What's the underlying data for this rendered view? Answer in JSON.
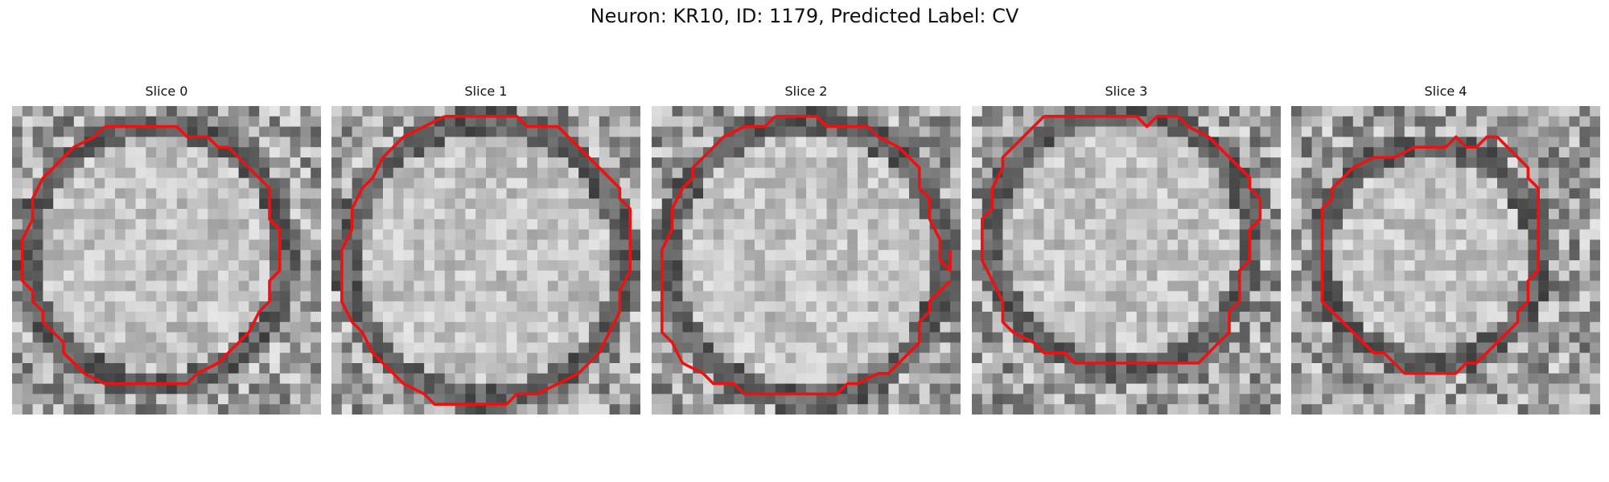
{
  "title": "Neuron: KR10, ID: 1179, Predicted Label: CV",
  "outline_color": "#ee1111",
  "slices": [
    {
      "label": "Slice 0"
    },
    {
      "label": "Slice 1"
    },
    {
      "label": "Slice 2"
    },
    {
      "label": "Slice 3"
    },
    {
      "label": "Slice 4"
    }
  ]
}
